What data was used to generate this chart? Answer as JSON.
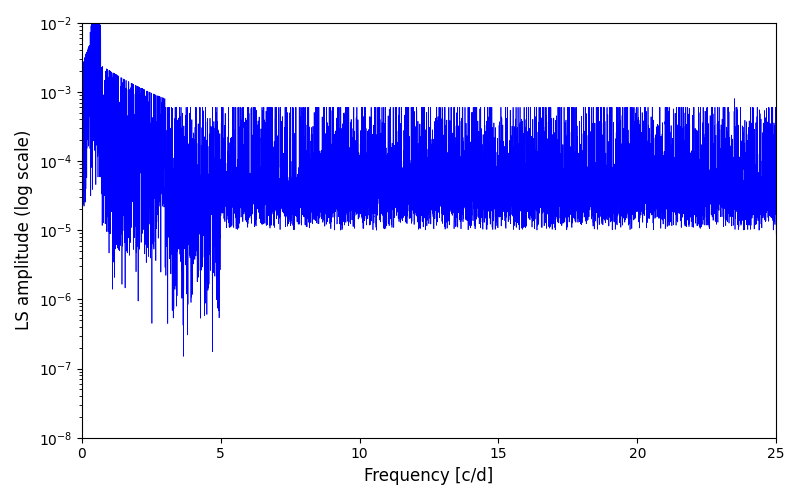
{
  "title": "",
  "xlabel": "Frequency [c/d]",
  "ylabel": "LS amplitude (log scale)",
  "xlim": [
    0,
    25
  ],
  "ylim": [
    1e-08,
    0.01
  ],
  "line_color": "#0000ff",
  "background_color": "#ffffff",
  "figsize": [
    8.0,
    5.0
  ],
  "dpi": 100,
  "freq_max": 25.0,
  "n_points": 8000,
  "seed": 137
}
